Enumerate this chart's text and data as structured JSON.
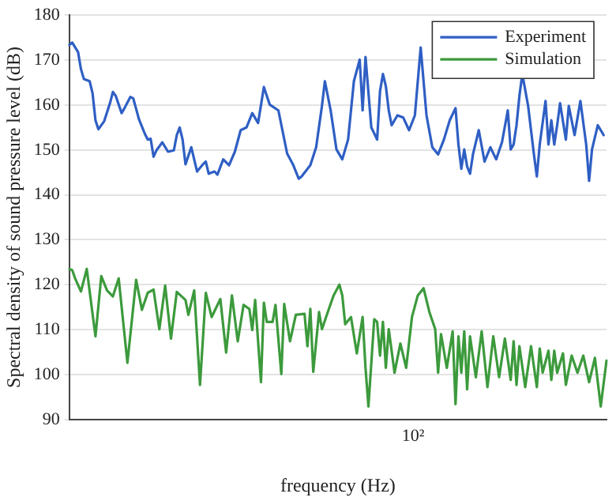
{
  "chart_data": {
    "type": "line",
    "xlabel": "frequency (Hz)",
    "ylabel": "Spectral density of sound pressure level (dB)",
    "grid": "y",
    "legend": "top right",
    "marker": "none",
    "line_style": "solid",
    "annotations": [
      "10²"
    ],
    "categories": [
      null,
      null,
      null,
      null,
      null,
      null,
      null,
      null,
      null,
      null,
      null,
      null,
      null,
      null,
      null,
      null,
      null,
      null,
      null,
      null,
      null,
      null,
      null,
      null,
      null,
      null,
      null,
      null,
      null,
      null,
      null,
      null,
      null,
      null,
      null,
      null,
      null,
      null,
      null,
      null,
      null,
      null,
      null,
      null,
      null,
      null,
      null,
      null,
      null,
      null,
      null,
      null,
      null,
      null,
      null,
      null,
      null,
      null,
      null,
      null,
      null,
      null,
      null,
      null,
      null,
      null,
      null,
      null,
      null,
      null,
      null,
      null,
      null,
      null,
      null,
      null,
      null,
      null,
      null,
      null,
      null,
      null,
      null,
      null,
      null,
      null,
      null,
      null,
      null,
      null,
      null,
      null,
      null,
      null,
      null,
      null,
      null,
      null,
      null,
      null,
      null,
      null,
      null,
      null,
      null,
      null,
      null,
      null,
      null,
      null,
      null,
      null,
      null,
      null,
      null,
      null,
      null,
      null,
      null,
      null,
      null,
      null,
      null,
      null,
      null,
      null,
      null,
      null,
      null,
      null,
      null,
      null,
      null,
      null,
      null,
      null,
      null,
      null,
      null,
      null,
      null,
      null,
      null,
      null,
      null,
      null,
      null,
      null,
      null,
      null,
      null,
      null,
      null,
      null,
      null,
      null,
      null,
      null,
      null,
      null,
      null,
      null,
      null,
      null,
      null,
      null,
      null,
      null,
      null,
      null,
      null,
      null,
      null,
      null,
      null,
      null,
      null,
      null,
      null,
      null,
      null,
      null,
      null,
      null,
      null,
      null
    ],
    "ylim": [
      90,
      180
    ],
    "yticks": [
      90,
      100,
      110,
      120,
      130,
      140,
      150,
      160,
      170,
      180
    ],
    "series": [
      {
        "name": "Experiment",
        "color": "#2f5fc4",
        "values": [
          173.4,
          173.9,
          null,
          171.8,
          168,
          165.8,
          null,
          165.3,
          162.6,
          156.6,
          154.6,
          null,
          156.4,
          null,
          160.4,
          162.9,
          162,
          null,
          158.2,
          159.3,
          null,
          161.8,
          161.5,
          null,
          156.8,
          null,
          153.6,
          152.3,
          152.5,
          148.5,
          149.9,
          null,
          151.7,
          null,
          149.6,
          null,
          149.9,
          153.3,
          155,
          152.3,
          146.8,
          null,
          150.6,
          null,
          145.2,
          null,
          146.8,
          147.4,
          144.7,
          null,
          145.2,
          144.5,
          null,
          147.9,
          null,
          146.6,
          null,
          149.6,
          null,
          154.4,
          null,
          155,
          null,
          158.2,
          null,
          156,
          null,
          164,
          null,
          160.1,
          null,
          null,
          158.8,
          null,
          null,
          149.2,
          null,
          146.8,
          null,
          143.6,
          144.1,
          null,
          null,
          146.6,
          null,
          150.6,
          null,
          159.8,
          165.3,
          null,
          158.8,
          null,
          150.1,
          null,
          147.9,
          null,
          152.3,
          null,
          165.3,
          null,
          170.1,
          158.8,
          170.7,
          null,
          155,
          null,
          152.3,
          163.1,
          166.9,
          164.2,
          158.8,
          155.5,
          null,
          157.7,
          null,
          157.2,
          null,
          154.4,
          null,
          157.7,
          null,
          172.8,
          null,
          157.7,
          null,
          150.6,
          null,
          149,
          null,
          152.3,
          null,
          156.6,
          null,
          159.3,
          151.2,
          145.8,
          150.1,
          146.3,
          144.7,
          149,
          null,
          154.4,
          null,
          147.4,
          null,
          150.6,
          null,
          147.9,
          null,
          151.7,
          null,
          158.8,
          150.1,
          151.2,
          155.5,
          162,
          166.9,
          null,
          159.8,
          null,
          149,
          144.1,
          151.2,
          null,
          160.9,
          151.2,
          156.6,
          151.2,
          155.5,
          160.4,
          null,
          152.3,
          159.8,
          null,
          153.3,
          null,
          160.9,
          null,
          151.2,
          143.1,
          150.1,
          null,
          155.5,
          null,
          153.3,
          null
        ]
      },
      {
        "name": "Simulation",
        "color": "#3c9a3c",
        "values": [
          123.5,
          123.2,
          121.4,
          null,
          118.5,
          null,
          123.5,
          null,
          null,
          108.5,
          null,
          121.9,
          null,
          118.7,
          null,
          117.4,
          null,
          121.4,
          null,
          null,
          102.6,
          null,
          null,
          121.1,
          null,
          114.4,
          null,
          118.2,
          null,
          118.9,
          null,
          110.1,
          null,
          119.8,
          null,
          108,
          null,
          118.4,
          null,
          null,
          116.6,
          113.3,
          null,
          118.7,
          null,
          97.7,
          null,
          118.2,
          null,
          112.8,
          null,
          null,
          116.8,
          null,
          104.9,
          null,
          117.6,
          null,
          107.4,
          null,
          115.5,
          null,
          114.6,
          109.9,
          116.6,
          null,
          98.3,
          116,
          111.7,
          null,
          111.7,
          115.5,
          null,
          100.1,
          115.7,
          null,
          107.4,
          null,
          113.3,
          null,
          null,
          113.5,
          106.3,
          114.6,
          100.6,
          null,
          113.9,
          110.1,
          null,
          113.9,
          null,
          117.6,
          null,
          120,
          117.6,
          111.2,
          null,
          112.8,
          null,
          104.7,
          null,
          112.8,
          101.5,
          92.9,
          null,
          112.3,
          111.7,
          104.2,
          111.7,
          101.5,
          110.1,
          null,
          100.4,
          null,
          106.9,
          null,
          101.5,
          null,
          112.8,
          null,
          117.6,
          null,
          119.2,
          null,
          113.9,
          null,
          110.1,
          100.4,
          109,
          null,
          101.5,
          null,
          109.6,
          93.4,
          108.5,
          100.4,
          109.6,
          96.7,
          108.5,
          null,
          99.4,
          null,
          109.6,
          null,
          97.2,
          null,
          108.5,
          null,
          99.4,
          null,
          108,
          null,
          98.8,
          107.4,
          97.7,
          106.3,
          null,
          97.2,
          null,
          106.3,
          null,
          97.2,
          105.8,
          100.4,
          null,
          105.3,
          98.8,
          105.3,
          100.4,
          null,
          104.7,
          97.7,
          null,
          104.2,
          null,
          100.4,
          null,
          104.2,
          null,
          98.3,
          null,
          103.7,
          null,
          92.9,
          null,
          103.1
        ]
      }
    ]
  }
}
